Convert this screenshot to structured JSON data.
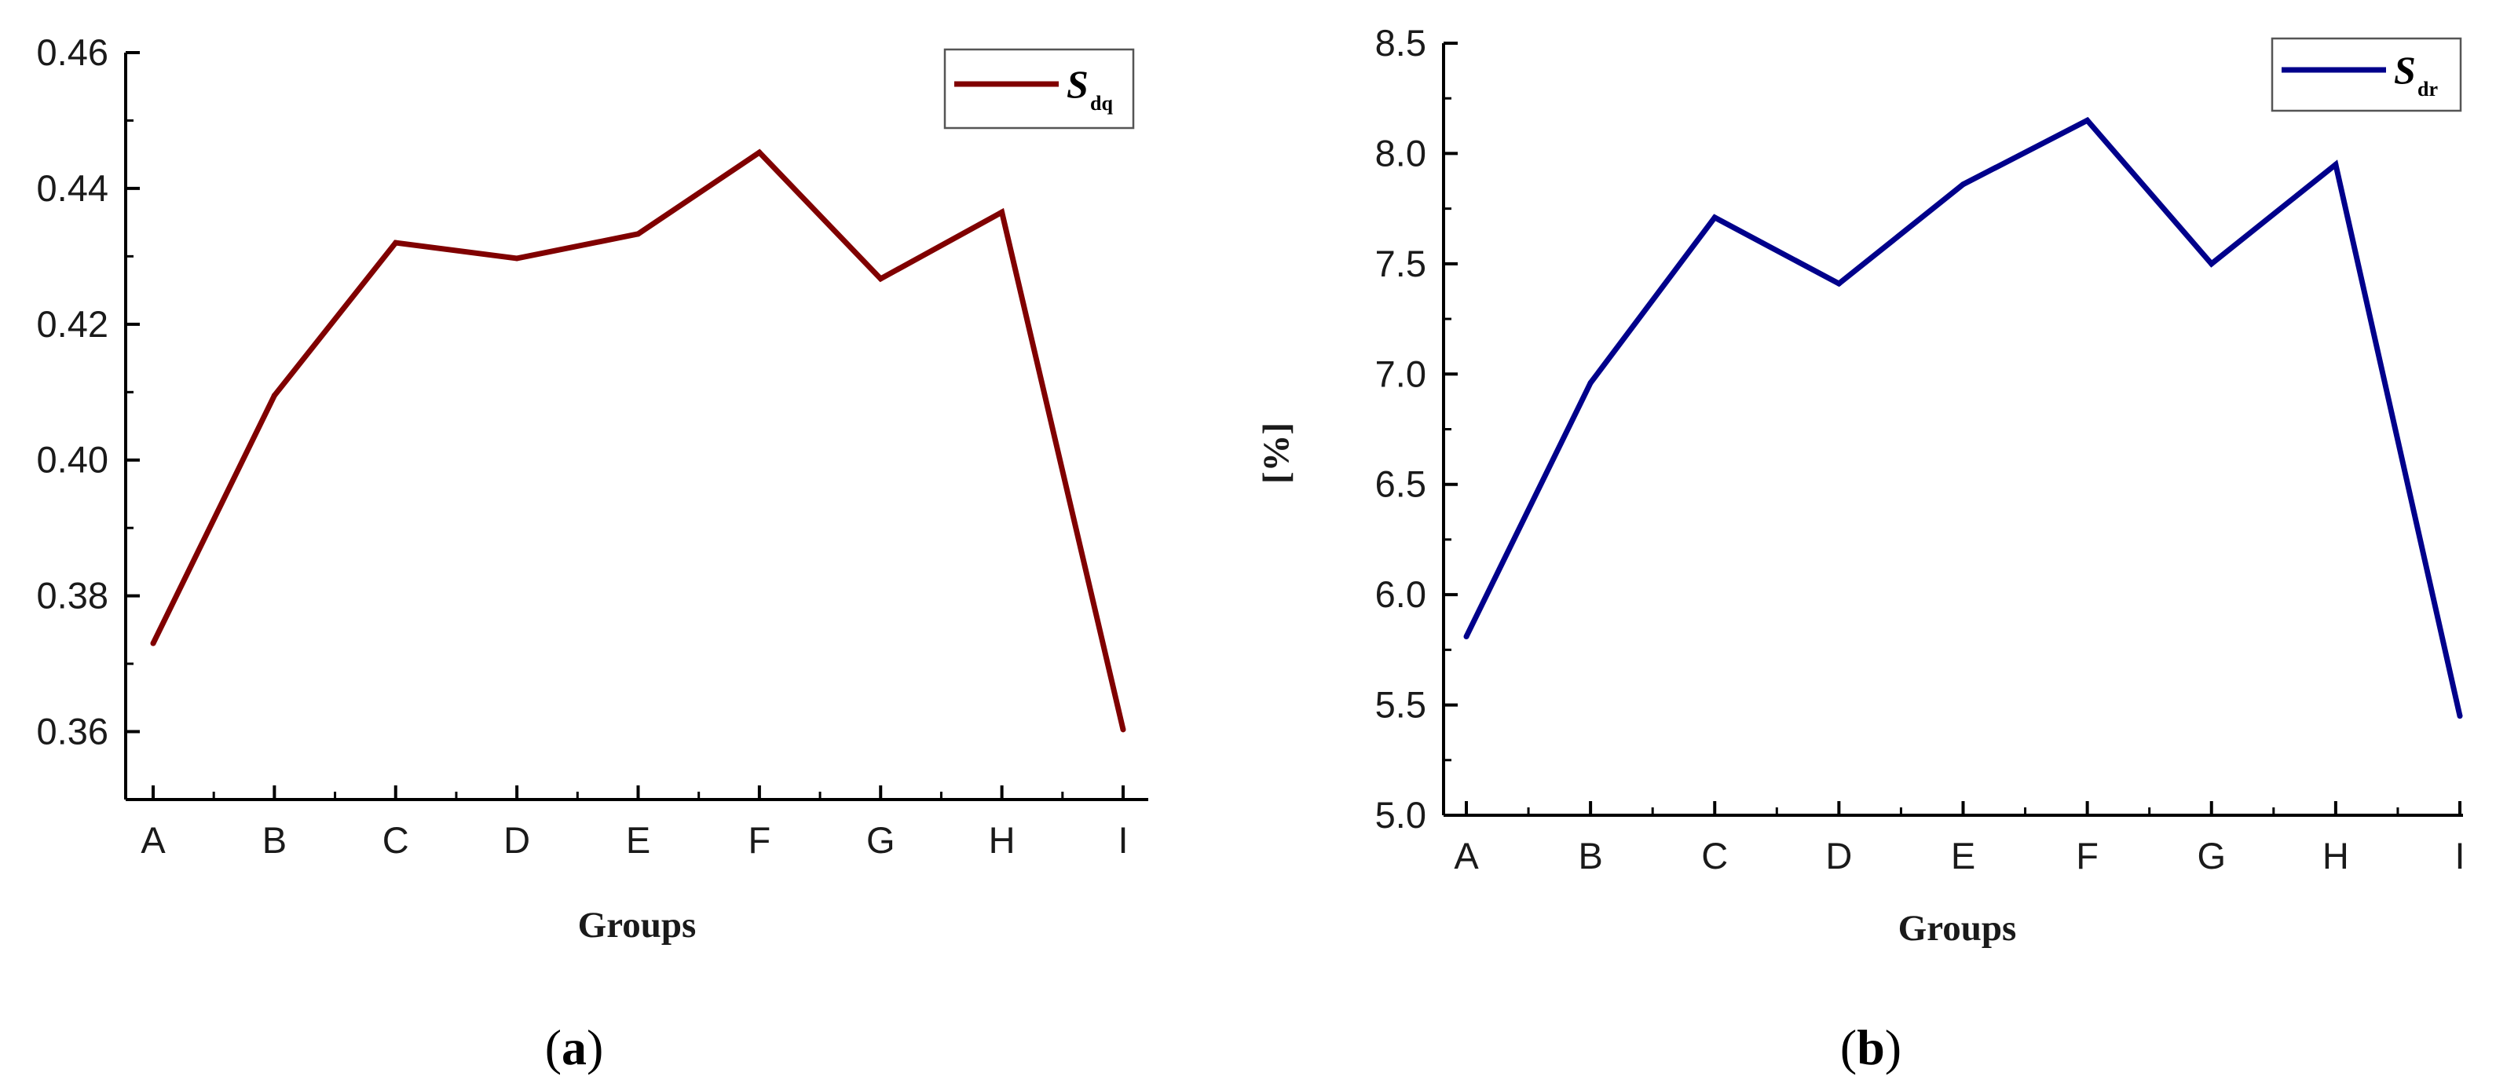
{
  "chart_data": [
    {
      "type": "line",
      "panel_label": "a",
      "categories": [
        "A",
        "B",
        "C",
        "D",
        "E",
        "F",
        "G",
        "H",
        "I"
      ],
      "series": [
        {
          "name": "S",
          "name_subscript": "dq",
          "color": "#800000",
          "values": [
            0.373,
            0.4095,
            0.432,
            0.4297,
            0.4333,
            0.4453,
            0.4267,
            0.4365,
            0.3603
          ]
        }
      ],
      "xlabel": "Groups",
      "ylabel": "",
      "ylim": [
        0.35,
        0.46
      ],
      "yticks": [
        "0.36",
        "0.38",
        "0.40",
        "0.42",
        "0.44",
        "0.46"
      ],
      "grid": false,
      "legend_position": "top-right"
    },
    {
      "type": "line",
      "panel_label": "b",
      "categories": [
        "A",
        "B",
        "C",
        "D",
        "E",
        "F",
        "G",
        "H",
        "I"
      ],
      "series": [
        {
          "name": "S",
          "name_subscript": "dr",
          "color": "#00008b",
          "values": [
            5.81,
            6.96,
            7.71,
            7.41,
            7.86,
            8.15,
            7.5,
            7.95,
            5.45
          ]
        }
      ],
      "xlabel": "Groups",
      "ylabel": "[%]",
      "ylim": [
        5.0,
        8.5
      ],
      "yticks": [
        "5.0",
        "5.5",
        "6.0",
        "6.5",
        "7.0",
        "7.5",
        "8.0",
        "8.5"
      ],
      "grid": false,
      "legend_position": "top-right"
    }
  ]
}
